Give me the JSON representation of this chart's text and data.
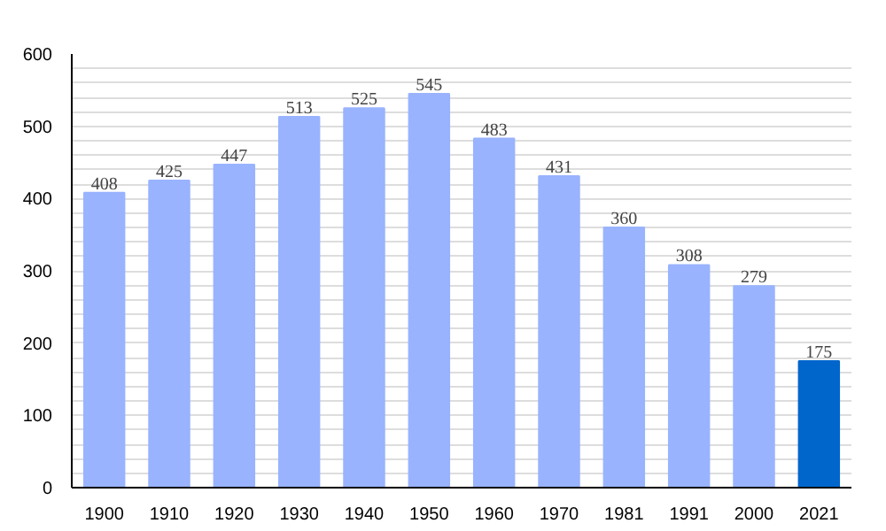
{
  "chart_data": {
    "type": "bar",
    "categories": [
      "1900",
      "1910",
      "1920",
      "1930",
      "1940",
      "1950",
      "1960",
      "1970",
      "1981",
      "1991",
      "2000",
      "2021"
    ],
    "values": [
      408,
      425,
      447,
      513,
      525,
      545,
      483,
      431,
      360,
      308,
      279,
      175
    ],
    "colors": [
      "#99b3ff",
      "#99b3ff",
      "#99b3ff",
      "#99b3ff",
      "#99b3ff",
      "#99b3ff",
      "#99b3ff",
      "#99b3ff",
      "#99b3ff",
      "#99b3ff",
      "#99b3ff",
      "#0066cc"
    ],
    "data_labels": true,
    "ylim": [
      0,
      600
    ],
    "yticks": [
      0,
      {
        "value": 20,
        "label": null
      },
      {
        "value": 40,
        "label": null
      },
      {
        "value": 60,
        "label": null
      },
      {
        "value": 80,
        "label": null
      },
      100,
      {
        "value": 120,
        "label": null
      },
      {
        "value": 140,
        "label": null
      },
      {
        "value": 160,
        "label": null
      },
      {
        "value": 180,
        "label": null
      },
      200,
      {
        "value": 220,
        "label": null
      },
      {
        "value": 240,
        "label": null
      },
      {
        "value": 260,
        "label": null
      },
      {
        "value": 280,
        "label": null
      },
      300,
      {
        "value": 320,
        "label": null
      },
      {
        "value": 340,
        "label": null
      },
      {
        "value": 360,
        "label": null
      },
      {
        "value": 380,
        "label": null
      },
      400,
      {
        "value": 420,
        "label": null
      },
      {
        "value": 440,
        "label": null
      },
      {
        "value": 460,
        "label": null
      },
      {
        "value": 480,
        "label": null
      },
      500,
      {
        "value": 520,
        "label": null
      },
      {
        "value": 540,
        "label": null
      },
      {
        "value": 560,
        "label": null
      },
      {
        "value": 580,
        "label": null
      },
      600
    ],
    "grid": "y"
  }
}
